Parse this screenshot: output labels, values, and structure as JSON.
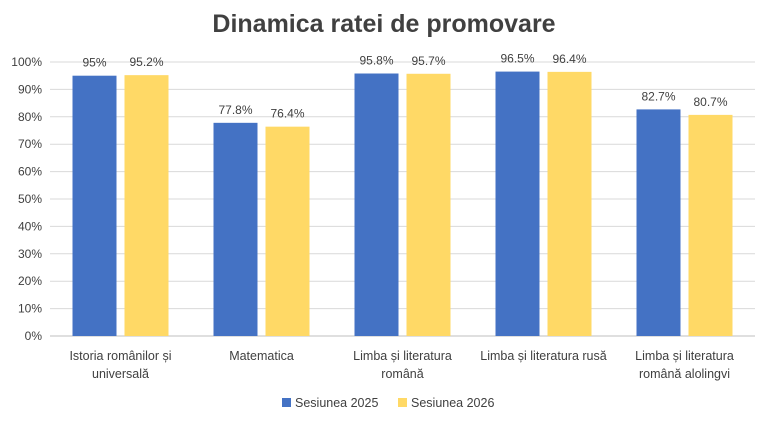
{
  "chart_data": {
    "type": "bar",
    "title": "Dinamica ratei de promovare",
    "categories": [
      [
        "Istoria românilor și",
        "universală"
      ],
      [
        "Matematica"
      ],
      [
        "Limba și literatura",
        "română"
      ],
      [
        "Limba și literatura rusă"
      ],
      [
        "Limba și literatura",
        "română alolingvi"
      ]
    ],
    "series": [
      {
        "name": "Sesiunea 2025",
        "color": "#4472C4",
        "values": [
          95,
          77.8,
          95.8,
          96.5,
          82.7
        ],
        "labels": [
          "95%",
          "77.8%",
          "95.8%",
          "96.5%",
          "82.7%"
        ]
      },
      {
        "name": "Sesiunea 2026",
        "color": "#FFD966",
        "values": [
          95.2,
          76.4,
          95.7,
          96.4,
          80.7
        ],
        "labels": [
          "95.2%",
          "76.4%",
          "95.7%",
          "96.4%",
          "80.7%"
        ]
      }
    ],
    "yticks": [
      "0%",
      "10%",
      "20%",
      "30%",
      "40%",
      "50%",
      "60%",
      "70%",
      "80%",
      "90%",
      "100%"
    ],
    "ylim": [
      0,
      100
    ],
    "grid": true,
    "legend_position": "bottom"
  }
}
